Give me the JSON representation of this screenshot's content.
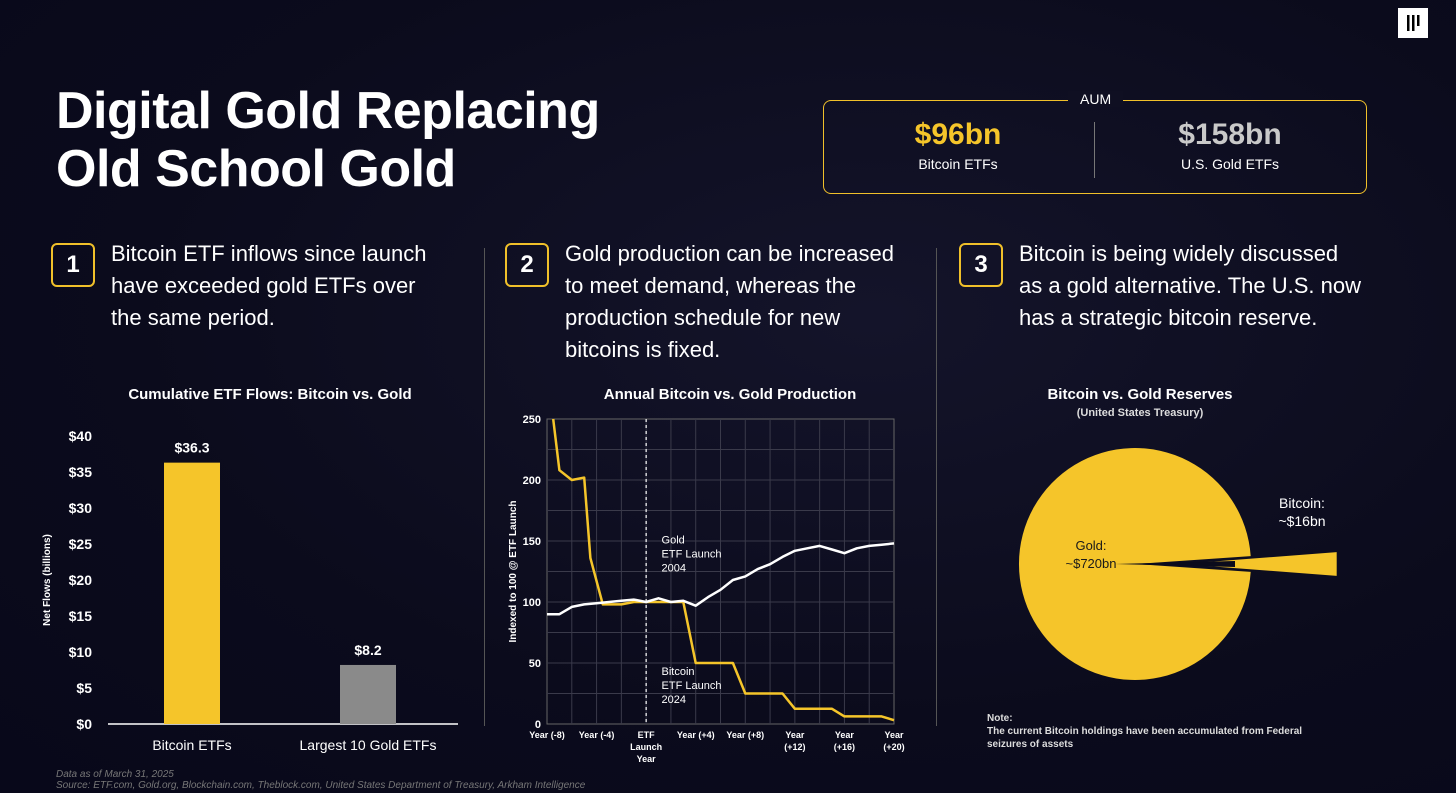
{
  "title_lines": [
    "Digital Gold Replacing",
    "Old School Gold"
  ],
  "aum": {
    "label": "AUM",
    "bitcoin_value": "$96bn",
    "bitcoin_label": "Bitcoin ETFs",
    "gold_value": "$158bn",
    "gold_label": "U.S. Gold ETFs"
  },
  "points": [
    {
      "number": "1",
      "lines": [
        "Bitcoin ETF inflows since launch",
        "have exceeded gold ETFs over",
        "the same period."
      ]
    },
    {
      "number": "2",
      "lines": [
        "Gold production can be increased",
        "to meet demand, whereas the",
        "production schedule for new",
        "bitcoins is fixed."
      ]
    },
    {
      "number": "3",
      "lines": [
        "Bitcoin is being widely discussed",
        "as a gold alternative. The U.S. now",
        "has a strategic bitcoin reserve."
      ]
    }
  ],
  "note_label": "Note:",
  "note_lines": [
    "The current Bitcoin holdings have been accumulated from Federal",
    "seizures of assets"
  ],
  "footer_lines": [
    "Data as of March 31, 2025",
    "Source: ETF.com, Gold.org, Blockchain.com, Theblock.com, United States Department of Treasury, Arkham Intelligence"
  ],
  "colors": {
    "gold": "#f5c52a",
    "grey": "#8a8a8a",
    "white": "#ffffff"
  },
  "chart_data": [
    {
      "type": "bar",
      "title": "Cumulative ETF Flows: Bitcoin vs. Gold",
      "ylabel": "Net Flows (billions)",
      "ylim": [
        0,
        40
      ],
      "yticks": [
        0,
        5,
        10,
        15,
        20,
        25,
        30,
        35,
        40
      ],
      "ytick_labels": [
        "$0",
        "$5",
        "$10",
        "$15",
        "$20",
        "$25",
        "$30",
        "$35",
        "$40"
      ],
      "categories": [
        "Bitcoin ETFs",
        "Largest 10 Gold ETFs"
      ],
      "values": [
        36.3,
        8.2
      ],
      "value_labels": [
        "$36.3",
        "$8.2"
      ],
      "bar_colors": [
        "#f5c52a",
        "#8a8a8a"
      ]
    },
    {
      "type": "line",
      "title": "Annual Bitcoin vs. Gold Production",
      "ylabel": "Indexed to 100 @ ETF Launch",
      "ylim": [
        0,
        250
      ],
      "yticks": [
        0,
        50,
        100,
        150,
        200,
        250
      ],
      "xlim": [
        -8,
        20
      ],
      "xticks": [
        -8,
        -4,
        0,
        4,
        8,
        12,
        16,
        20
      ],
      "xtick_labels": [
        [
          "Year (-8)"
        ],
        [
          "Year (-4)"
        ],
        [
          "ETF",
          "Launch",
          "Year"
        ],
        [
          "Year (+4)"
        ],
        [
          "Year (+8)"
        ],
        [
          "Year",
          "(+12)"
        ],
        [
          "Year",
          "(+16)"
        ],
        [
          "Year",
          "(+20)"
        ]
      ],
      "grid": true,
      "launch_line_x": 0,
      "annotations": [
        {
          "lines": [
            "Gold",
            "ETF Launch",
            "2004"
          ],
          "x": 1,
          "y": 148
        },
        {
          "lines": [
            "Bitcoin",
            "ETF Launch",
            "2024"
          ],
          "x": 1,
          "y": 40
        }
      ],
      "series": [
        {
          "key": "bitcoin",
          "color": "#f5c52a",
          "x": [
            -7.5,
            -7,
            -6,
            -5,
            -4.5,
            -3.5,
            -2,
            -1,
            0,
            2,
            3,
            4,
            6,
            7,
            8,
            10,
            11,
            12,
            14,
            15,
            16,
            18,
            19,
            20
          ],
          "y": [
            250,
            208,
            200,
            202,
            136,
            98,
            98,
            100,
            100,
            100,
            100,
            50,
            50,
            50,
            25,
            25,
            25,
            12.5,
            12.5,
            12.5,
            6.25,
            6.25,
            6.25,
            3.1
          ]
        },
        {
          "key": "gold",
          "color": "#ffffff",
          "x": [
            -8,
            -7,
            -6,
            -5,
            -4,
            -3,
            -2,
            -1,
            0,
            1,
            2,
            3,
            4,
            5,
            6,
            7,
            8,
            9,
            10,
            11,
            12,
            13,
            14,
            15,
            16,
            17,
            18,
            19,
            20
          ],
          "y": [
            90,
            90,
            96,
            98,
            99,
            100,
            101,
            102,
            100,
            103,
            100,
            101,
            97,
            104,
            110,
            118,
            121,
            127,
            131,
            137,
            142,
            144,
            146,
            143,
            140,
            144,
            146,
            147,
            148
          ]
        }
      ]
    },
    {
      "type": "pie",
      "title": "Bitcoin vs. Gold Reserves",
      "subtitle": "(United States Treasury)",
      "labels": [
        "Gold:",
        "Bitcoin:"
      ],
      "value_labels": [
        "~$720bn",
        "~$16bn"
      ],
      "values": [
        720,
        16
      ],
      "colors": [
        "#f5c52a",
        "#f5c52a"
      ]
    }
  ]
}
